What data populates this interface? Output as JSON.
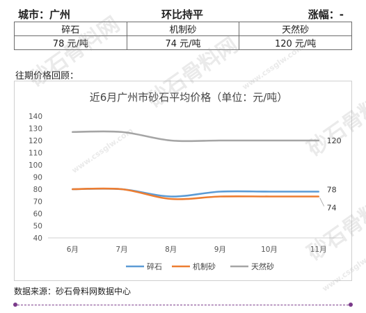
{
  "header": {
    "city": "城市：广州",
    "trend": "环比持平",
    "change": "涨幅：-"
  },
  "price_table": {
    "names": [
      "碎石",
      "机制砂",
      "天然砂"
    ],
    "prices": [
      "78 元/吨",
      "74 元/吨",
      "120 元/吨"
    ]
  },
  "history_label": "往期价格回顾：",
  "source": "数据来源：砂石骨料网数据中心",
  "watermark": {
    "brand": "砂石骨料网",
    "url": "www.cssglw.com"
  },
  "chart_data": {
    "type": "line",
    "title": "近6月广州市砂石平均价格（单位：元/吨）",
    "categories": [
      "6月",
      "7月",
      "8月",
      "9月",
      "10月",
      "11月"
    ],
    "ylim": [
      40,
      140
    ],
    "yticks": [
      40,
      50,
      60,
      70,
      80,
      90,
      100,
      110,
      120,
      130,
      140
    ],
    "grid": false,
    "legend_position": "bottom",
    "series": [
      {
        "name": "碎石",
        "color": "#5b9bd5",
        "values": [
          80,
          80,
          74,
          78,
          78,
          78
        ],
        "end_label": "78"
      },
      {
        "name": "机制砂",
        "color": "#ed7d31",
        "values": [
          80,
          80,
          72,
          74,
          74,
          74
        ],
        "end_label": "74"
      },
      {
        "name": "天然砂",
        "color": "#a5a5a5",
        "values": [
          127,
          127,
          120,
          120,
          120,
          120
        ],
        "end_label": "120"
      }
    ]
  }
}
